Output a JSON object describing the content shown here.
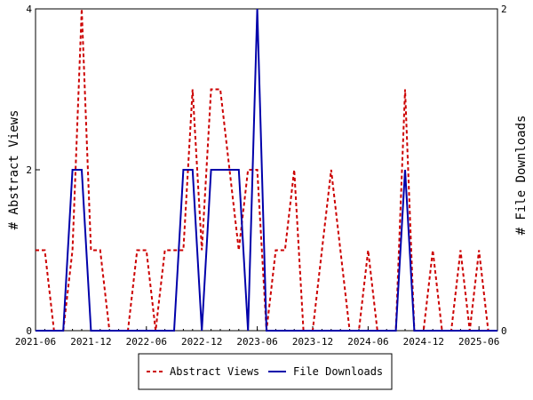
{
  "chart_data": {
    "type": "line",
    "ylabel_left": "# Abstract Views",
    "ylabel_right": "# File Downloads",
    "x_ticks": [
      "2021-06",
      "2021-12",
      "2022-06",
      "2022-12",
      "2023-06",
      "2023-12",
      "2024-06",
      "2024-12",
      "2025-06"
    ],
    "x_range": [
      "2021-06",
      "2025-08"
    ],
    "y_left_ticks": [
      "0",
      "2",
      "4"
    ],
    "y_left_range": [
      0,
      4
    ],
    "y_right_ticks": [
      "0",
      "2"
    ],
    "y_right_range": [
      0,
      2
    ],
    "legend_position": "bottom",
    "series": [
      {
        "name": "Abstract Views",
        "axis": "left",
        "color": "#cc0000",
        "dash": true,
        "x": [
          "2021-06",
          "2021-07",
          "2021-08",
          "2021-09",
          "2021-10",
          "2021-11",
          "2021-12",
          "2022-01",
          "2022-02",
          "2022-03",
          "2022-04",
          "2022-05",
          "2022-06",
          "2022-07",
          "2022-08",
          "2022-09",
          "2022-10",
          "2022-11",
          "2022-12",
          "2023-01",
          "2023-02",
          "2023-03",
          "2023-04",
          "2023-05",
          "2023-06",
          "2023-07",
          "2023-08",
          "2023-09",
          "2023-10",
          "2023-11",
          "2023-12",
          "2024-01",
          "2024-02",
          "2024-03",
          "2024-04",
          "2024-05",
          "2024-06",
          "2024-07",
          "2024-08",
          "2024-09",
          "2024-10",
          "2024-11",
          "2024-12",
          "2025-01",
          "2025-02",
          "2025-03",
          "2025-04",
          "2025-05",
          "2025-06",
          "2025-07",
          "2025-08"
        ],
        "values": [
          1,
          1,
          0,
          0,
          1,
          4,
          1,
          1,
          0,
          0,
          0,
          1,
          1,
          0,
          1,
          1,
          1,
          3,
          1,
          3,
          3,
          2,
          1,
          2,
          2,
          0,
          1,
          1,
          2,
          0,
          0,
          1,
          2,
          1,
          0,
          0,
          1,
          0,
          0,
          0,
          3,
          0,
          0,
          1,
          0,
          0,
          1,
          0,
          1,
          0,
          0
        ]
      },
      {
        "name": "File Downloads",
        "axis": "right",
        "color": "#0000aa",
        "dash": false,
        "x": [
          "2021-06",
          "2021-07",
          "2021-08",
          "2021-09",
          "2021-10",
          "2021-11",
          "2021-12",
          "2022-01",
          "2022-02",
          "2022-03",
          "2022-04",
          "2022-05",
          "2022-06",
          "2022-07",
          "2022-08",
          "2022-09",
          "2022-10",
          "2022-11",
          "2022-12",
          "2023-01",
          "2023-02",
          "2023-03",
          "2023-04",
          "2023-05",
          "2023-06",
          "2023-07",
          "2023-08",
          "2023-09",
          "2023-10",
          "2023-11",
          "2023-12",
          "2024-01",
          "2024-02",
          "2024-03",
          "2024-04",
          "2024-05",
          "2024-06",
          "2024-07",
          "2024-08",
          "2024-09",
          "2024-10",
          "2024-11",
          "2024-12",
          "2025-01",
          "2025-02",
          "2025-03",
          "2025-04",
          "2025-05",
          "2025-06",
          "2025-07",
          "2025-08"
        ],
        "values": [
          0,
          0,
          0,
          0,
          1,
          1,
          0,
          0,
          0,
          0,
          0,
          0,
          0,
          0,
          0,
          0,
          1,
          1,
          0,
          1,
          1,
          1,
          1,
          0,
          2,
          0,
          0,
          0,
          0,
          0,
          0,
          0,
          0,
          0,
          0,
          0,
          0,
          0,
          0,
          0,
          1,
          0,
          0,
          0,
          0,
          0,
          0,
          0,
          0,
          0,
          0
        ]
      }
    ]
  }
}
